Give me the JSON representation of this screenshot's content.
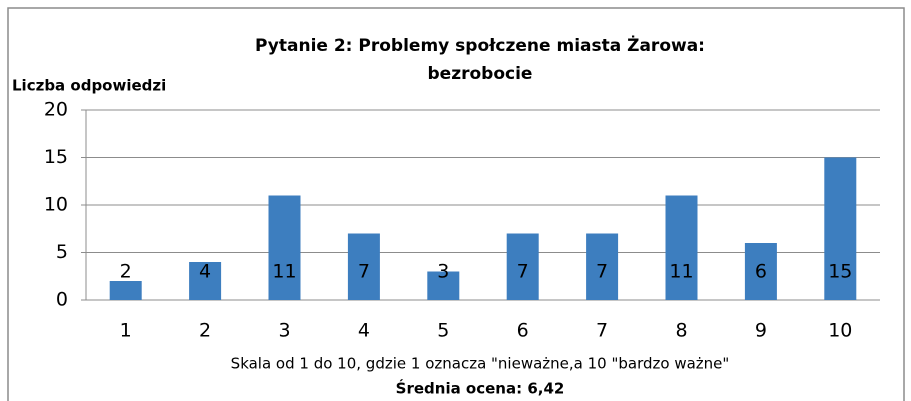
{
  "chart_data": {
    "type": "bar",
    "title": [
      "Pytanie 2: Problemy społczene miasta Żarowa:",
      "bezrobocie"
    ],
    "ylabel": "Liczba odpowiedzi",
    "xlabel": "Skala od 1 do 10, gdzie 1 oznacza \"nieważne,a 10 \"bardzo ważne\"",
    "annotation": "Średnia ocena: 6,42",
    "categories": [
      "1",
      "2",
      "3",
      "4",
      "5",
      "6",
      "7",
      "8",
      "9",
      "10"
    ],
    "values": [
      2,
      4,
      11,
      7,
      3,
      7,
      7,
      11,
      6,
      15
    ],
    "color": "#3d7ebf",
    "ylim": [
      0,
      20
    ],
    "yticks": [
      0,
      5,
      10,
      15,
      20
    ],
    "grid": true
  }
}
